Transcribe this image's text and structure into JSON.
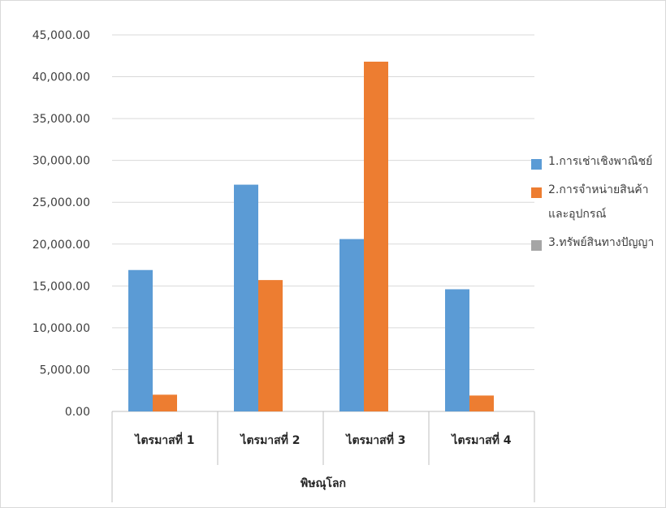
{
  "chart_data": {
    "type": "bar",
    "categories": [
      "ไตรมาสที่ 1",
      "ไตรมาสที่ 2",
      "ไตรมาสที่ 3",
      "ไตรมาสที่ 4"
    ],
    "group_label": "พิษณุโลก",
    "series": [
      {
        "name": "1.การเช่าเชิงพาณิชย์",
        "color": "#5b9bd5",
        "values": [
          16900,
          27100,
          20600,
          14600
        ]
      },
      {
        "name": "2.การจำหน่ายสินค้าและอุปกรณ์",
        "color": "#ed7d31",
        "values": [
          2000,
          15700,
          41800,
          1900
        ]
      },
      {
        "name": "3.ทรัพย์สินทางปัญญา",
        "color": "#a5a5a5",
        "values": [
          0,
          0,
          0,
          0
        ]
      }
    ],
    "ylim": [
      0,
      45000
    ],
    "yticks": [
      "0.00",
      "5,000.00",
      "10,000.00",
      "15,000.00",
      "20,000.00",
      "25,000.00",
      "30,000.00",
      "35,000.00",
      "40,000.00",
      "45,000.00"
    ],
    "grid": true,
    "legend_position": "right"
  }
}
